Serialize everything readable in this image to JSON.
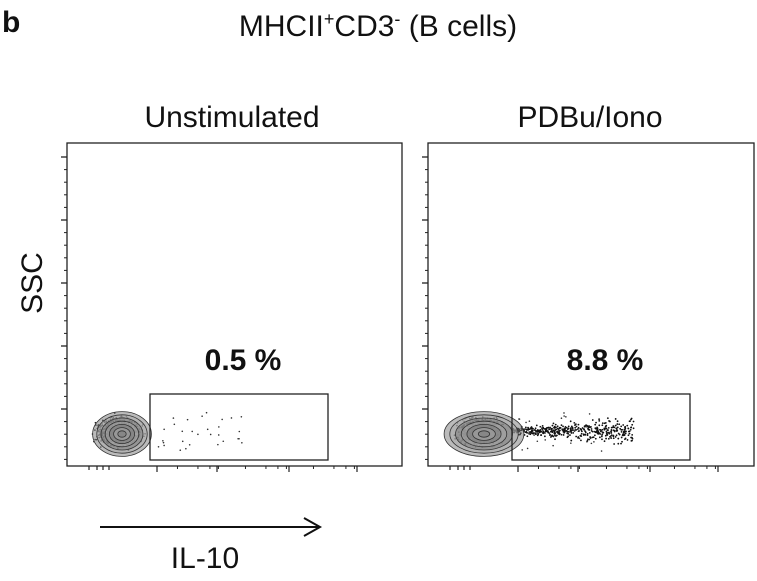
{
  "panel_label": "b",
  "title": {
    "parts": [
      "MHCII",
      "+",
      "CD3",
      "-",
      " (B cells)"
    ]
  },
  "y_label": "SSC",
  "x_label": "IL-10",
  "plots": [
    {
      "title": "Unstimulated",
      "gate_label": "0.5 %"
    },
    {
      "title": "PDBu/Iono",
      "gate_label": "8.8 %"
    }
  ]
}
